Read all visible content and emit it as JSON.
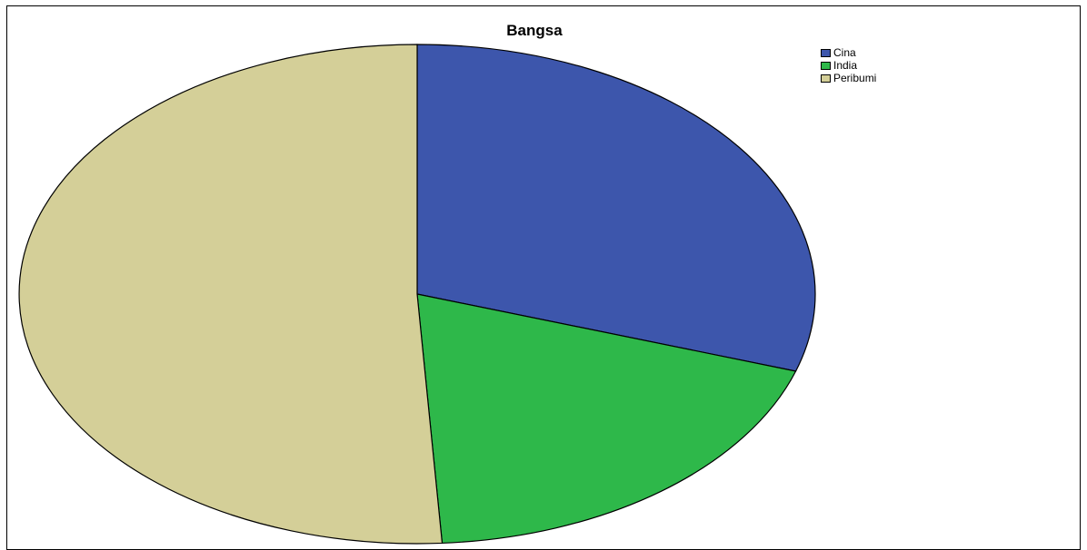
{
  "chart_data": {
    "type": "pie",
    "title": "Bangsa",
    "categories": [
      "Cina",
      "India",
      "Peribumi"
    ],
    "values": [
      30,
      19,
      51
    ],
    "colors": [
      "#3d56ac",
      "#2eb84a",
      "#d4cf98"
    ],
    "start_angle_deg": 0,
    "direction": "clockwise",
    "legend_position": "top-right",
    "grid": false
  }
}
